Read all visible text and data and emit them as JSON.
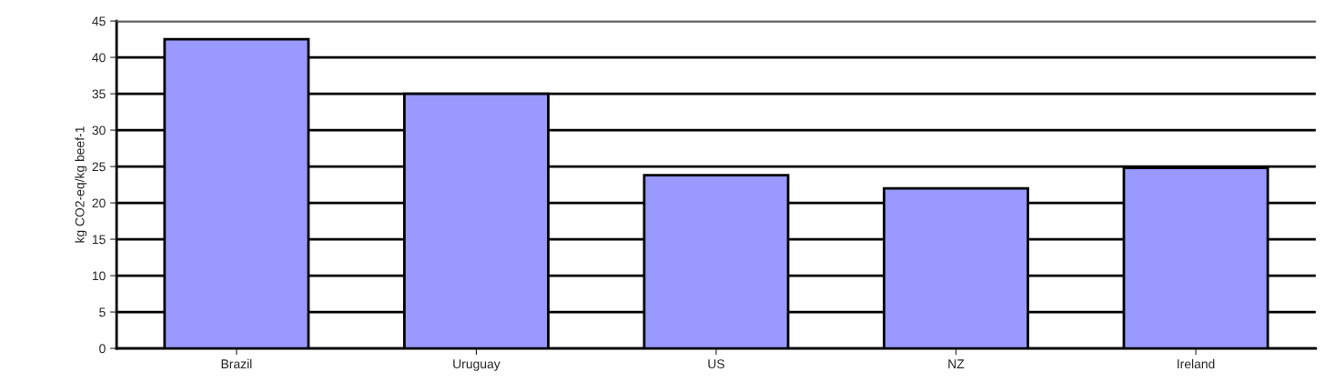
{
  "chart_data": {
    "type": "bar",
    "ylabel": "kg CO2-eq/kg beef-1",
    "categories": [
      "Brazil",
      "Uruguay",
      "US",
      "NZ",
      "Ireland"
    ],
    "series": [
      {
        "color": "#9999ff",
        "values": [
          42.5,
          35,
          23.8,
          22,
          24.8
        ]
      }
    ],
    "ylim": [
      0,
      45
    ],
    "yticks": [
      0,
      5,
      10,
      15,
      20,
      25,
      30,
      35,
      40,
      45
    ],
    "grid": "y",
    "legend": false
  }
}
